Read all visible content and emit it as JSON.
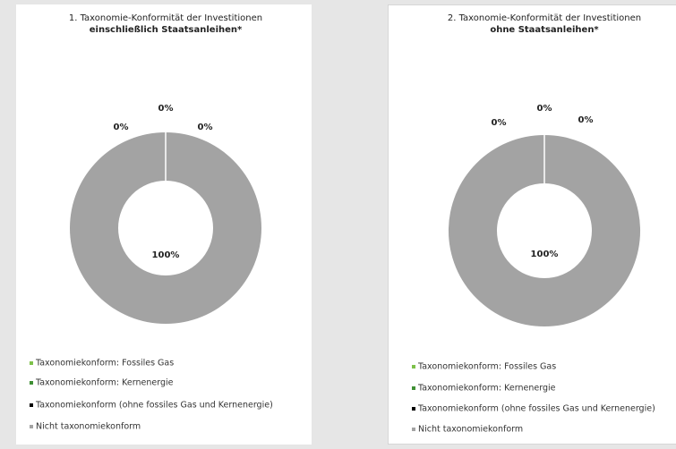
{
  "chart_data": [
    {
      "type": "pie",
      "title": "1. Taxonomie-Konformität der Investitionen",
      "subtitle": "einschließlich Staatsanleihen*",
      "categories": [
        "Taxonomiekonform: Fossiles Gas",
        "Taxonomiekonform: Kernenergie",
        "Taxonomiekonform (ohne fossiles Gas und Kernenergie)",
        "Nicht taxonomiekonform"
      ],
      "values": [
        0,
        0,
        0,
        100
      ],
      "value_labels": [
        "0%",
        "0%",
        "0%",
        "100%"
      ],
      "colors": [
        "#7dc14a",
        "#3f8f34",
        "#000000",
        "#a3a3a3"
      ]
    },
    {
      "type": "pie",
      "title": "2. Taxonomie-Konformität der Investitionen",
      "subtitle": "ohne Staatsanleihen*",
      "categories": [
        "Taxonomiekonform: Fossiles Gas",
        "Taxonomiekonform: Kernenergie",
        "Taxonomiekonform (ohne fossiles Gas und Kernenergie)",
        "Nicht taxonomiekonform"
      ],
      "values": [
        0,
        0,
        0,
        100
      ],
      "value_labels": [
        "0%",
        "0%",
        "0%",
        "100%"
      ],
      "colors": [
        "#7dc14a",
        "#3f8f34",
        "#000000",
        "#a3a3a3"
      ]
    }
  ]
}
